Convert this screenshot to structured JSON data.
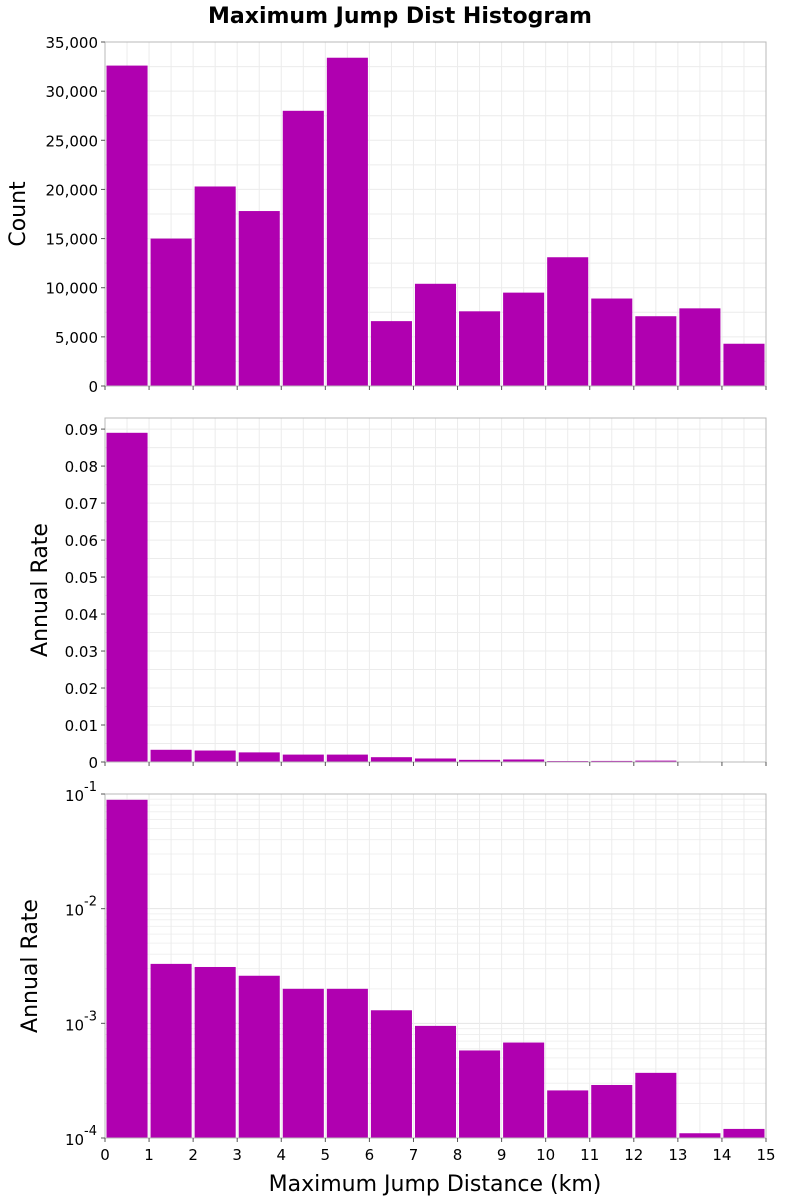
{
  "chart_data": {
    "type": "bar",
    "title": "Maximum Jump Dist Histogram",
    "xlabel": "Maximum Jump Distance (km)",
    "xlim": [
      0,
      15
    ],
    "x_ticks": [
      "0",
      "1",
      "2",
      "3",
      "4",
      "5",
      "6",
      "7",
      "8",
      "9",
      "10",
      "11",
      "12",
      "13",
      "14",
      "15"
    ],
    "bar_color": "#b000b0",
    "grid": true,
    "bins": [
      0.5,
      1.5,
      2.5,
      3.5,
      4.5,
      5.5,
      6.5,
      7.5,
      8.5,
      9.5,
      10.5,
      11.5,
      12.5,
      13.5,
      14.5
    ],
    "panels": [
      {
        "ylabel": "Count",
        "scale": "linear",
        "ylim": [
          0,
          35000
        ],
        "y_ticks": [
          {
            "value": 0,
            "label": "0"
          },
          {
            "value": 5000,
            "label": "5,000"
          },
          {
            "value": 10000,
            "label": "10,000"
          },
          {
            "value": 15000,
            "label": "15,000"
          },
          {
            "value": 20000,
            "label": "20,000"
          },
          {
            "value": 25000,
            "label": "25,000"
          },
          {
            "value": 30000,
            "label": "30,000"
          },
          {
            "value": 35000,
            "label": "35,000"
          }
        ],
        "values": [
          32600,
          15000,
          20300,
          17800,
          28000,
          33400,
          6600,
          10400,
          7600,
          9500,
          13100,
          8900,
          7100,
          7900,
          4300
        ]
      },
      {
        "ylabel": "Annual Rate",
        "scale": "linear",
        "ylim": [
          0,
          0.093
        ],
        "y_ticks": [
          {
            "value": 0,
            "label": "0"
          },
          {
            "value": 0.01,
            "label": "0.01"
          },
          {
            "value": 0.02,
            "label": "0.02"
          },
          {
            "value": 0.03,
            "label": "0.03"
          },
          {
            "value": 0.04,
            "label": "0.04"
          },
          {
            "value": 0.05,
            "label": "0.05"
          },
          {
            "value": 0.06,
            "label": "0.06"
          },
          {
            "value": 0.07,
            "label": "0.07"
          },
          {
            "value": 0.08,
            "label": "0.08"
          },
          {
            "value": 0.09,
            "label": "0.09"
          }
        ],
        "values": [
          0.089,
          0.0033,
          0.0031,
          0.0026,
          0.002,
          0.002,
          0.0013,
          0.00095,
          0.00058,
          0.00068,
          0.00026,
          0.00029,
          0.00037,
          0.00011,
          0.00012
        ]
      },
      {
        "ylabel": "Annual Rate",
        "scale": "log",
        "ylim": [
          0.0001,
          0.1
        ],
        "y_ticks": [
          {
            "value": 0.1,
            "base": "10",
            "exp": "-1"
          },
          {
            "value": 0.01,
            "base": "10",
            "exp": "-2"
          },
          {
            "value": 0.001,
            "base": "10",
            "exp": "-3"
          },
          {
            "value": 0.0001,
            "base": "10",
            "exp": "-4"
          }
        ],
        "values": [
          0.089,
          0.0033,
          0.0031,
          0.0026,
          0.002,
          0.002,
          0.0013,
          0.00095,
          0.00058,
          0.00068,
          0.00026,
          0.00029,
          0.00037,
          0.00011,
          0.00012
        ]
      }
    ]
  }
}
